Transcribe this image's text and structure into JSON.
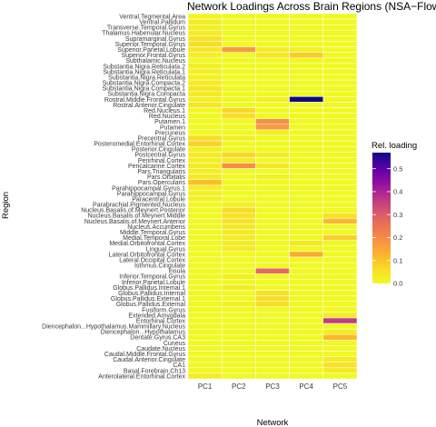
{
  "chart_data": {
    "type": "heatmap",
    "title": "Network Loadings Across Brain Regions (NSA−Flow)",
    "xlabel": "Network",
    "ylabel": "Region",
    "columns": [
      "PC1",
      "PC2",
      "PC3",
      "PC4",
      "PC5"
    ],
    "rows": [
      "Ventral.Tegmental.Area",
      "Ventral.Pallidum",
      "Transverse.Temporal.Gyrus",
      "Thalamus.Habenular.Nucleus",
      "Supramarginal.Gyrus",
      "Superior.Temporal.Gyrus",
      "Superior.Parietal.Lobule",
      "Superior.Frontal.Gyrus",
      "Subthalamic.Nucleus",
      "Substantia.Nigra.Reticulata.2",
      "Substantia.Nigra.Reticulata.1",
      "Substantia.Nigra.Reticulata",
      "Substantia.Nigra.Compacta.2",
      "Substantia.Nigra.Compacta.1",
      "Substantia.Nigra.Compacta",
      "Rostral.Middle.Frontal.Gyrus",
      "Rostral.Anterior.Cingulate",
      "Red.Nucleus.1",
      "Red.Nucleus",
      "Putamen.1",
      "Putamen",
      "Precuneus",
      "Precentral.Gyrus",
      "Posteromedial.Entorhinal.Cortex",
      "Posterior.Cingulate",
      "Postcentral.Gyrus",
      "Perirhinal.Cortex",
      "Pericalcarine.Cortex",
      "Pars.Triangularis",
      "Pars.Orbitalis",
      "Pars.Opercularis",
      "Parahippocampal.Gyrus.1",
      "Parahippocampal.Gyrus",
      "Paracentral.Lobule",
      "Parabrachial.Pigmented.Nucleus",
      "Nucleus.Basalis.of.Meynert.Posterior",
      "Nucleus.Basalis.of.Meynert.Middle",
      "Nucleus.Basalis.of.Meynert.Anterior",
      "Nucleus.Accumbens",
      "Middle.Temporal.Gyrus",
      "Medial.Temporal.Lobe",
      "Medial.Orbitofrontal.Cortex",
      "Lingual.Gyrus",
      "Lateral.Orbitofrontal.Cortex",
      "Lateral.Occipital.Cortex",
      "Isthmus.Cingulate",
      "Insula",
      "Inferior.Temporal.Gyrus",
      "Inferior.Parietal.Lobule",
      "Globus.Pallidus.Internal.1",
      "Globus.Pallidus.Internal",
      "Globus.Pallidus.External.1",
      "Globus.Pallidus.External",
      "Fusiform.Gyrus",
      "Extended.Amygdala",
      "Entorhinal.Cortex",
      "Diencephalon...Hypothalamus.Mammillary.Nucleus",
      "Diencephalon...Hypothalamus",
      "Dentate.Gyrus.CA3",
      "Cuneus",
      "Caudate.Nucleus",
      "Caudal.Middle.Frontal.Gyrus",
      "Caudal.Anterior.Cingulate",
      "CA1",
      "Basal.Forebrain.Ch13",
      "Anterolateral.Entorhinal.Cortex"
    ],
    "values": [
      [
        0.01,
        0.0,
        0.0,
        0.0,
        0.0
      ],
      [
        0.03,
        0.0,
        0.0,
        0.0,
        0.0
      ],
      [
        0.02,
        0.0,
        0.0,
        0.0,
        0.0
      ],
      [
        0.03,
        0.0,
        0.0,
        0.0,
        0.0
      ],
      [
        0.05,
        0.0,
        0.0,
        0.0,
        0.0
      ],
      [
        0.06,
        0.0,
        0.0,
        0.0,
        0.0
      ],
      [
        0.04,
        0.17,
        0.03,
        0.02,
        0.0
      ],
      [
        0.02,
        0.0,
        0.04,
        0.09,
        0.0
      ],
      [
        0.0,
        0.0,
        0.0,
        0.0,
        0.0
      ],
      [
        0.02,
        0.0,
        0.0,
        0.0,
        0.0
      ],
      [
        0.02,
        0.0,
        0.0,
        0.0,
        0.0
      ],
      [
        0.02,
        0.0,
        0.0,
        0.0,
        0.0
      ],
      [
        0.03,
        0.0,
        0.0,
        0.0,
        0.0
      ],
      [
        0.04,
        0.0,
        0.0,
        0.0,
        0.0
      ],
      [
        0.03,
        0.0,
        0.0,
        0.0,
        0.0
      ],
      [
        0.02,
        0.0,
        0.02,
        0.57,
        0.0
      ],
      [
        0.04,
        0.0,
        0.0,
        0.0,
        0.0
      ],
      [
        0.0,
        0.07,
        0.0,
        0.0,
        0.0
      ],
      [
        0.0,
        0.06,
        0.0,
        0.0,
        0.0
      ],
      [
        0.0,
        0.0,
        0.19,
        0.0,
        0.0
      ],
      [
        0.0,
        0.0,
        0.17,
        0.0,
        0.0
      ],
      [
        0.0,
        0.0,
        0.02,
        0.0,
        0.0
      ],
      [
        0.06,
        0.02,
        0.0,
        0.0,
        0.0
      ],
      [
        0.08,
        0.0,
        0.0,
        0.0,
        0.0
      ],
      [
        0.02,
        0.0,
        0.0,
        0.0,
        0.0
      ],
      [
        0.03,
        0.07,
        0.03,
        0.0,
        0.0
      ],
      [
        0.02,
        0.03,
        0.0,
        0.0,
        0.0
      ],
      [
        0.03,
        0.19,
        0.04,
        0.0,
        0.0
      ],
      [
        0.02,
        0.0,
        0.0,
        0.0,
        0.0
      ],
      [
        0.03,
        0.0,
        0.02,
        0.0,
        0.0
      ],
      [
        0.11,
        0.0,
        0.0,
        0.0,
        0.0
      ],
      [
        0.02,
        0.0,
        0.0,
        0.0,
        0.0
      ],
      [
        0.02,
        0.0,
        0.0,
        0.0,
        0.0
      ],
      [
        0.02,
        0.0,
        0.0,
        0.0,
        0.0
      ],
      [
        0.0,
        0.02,
        0.0,
        0.0,
        0.0
      ],
      [
        0.0,
        0.06,
        0.0,
        0.0,
        0.0
      ],
      [
        0.0,
        0.05,
        0.0,
        0.0,
        0.05
      ],
      [
        0.0,
        0.05,
        0.0,
        0.0,
        0.12
      ],
      [
        0.0,
        0.04,
        0.0,
        0.0,
        0.0
      ],
      [
        0.0,
        0.03,
        0.0,
        0.0,
        0.0
      ],
      [
        0.0,
        0.03,
        0.0,
        0.0,
        0.08
      ],
      [
        0.0,
        0.03,
        0.0,
        0.04,
        0.0
      ],
      [
        0.0,
        0.03,
        0.0,
        0.0,
        0.0
      ],
      [
        0.0,
        0.0,
        0.0,
        0.14,
        0.0
      ],
      [
        0.0,
        0.0,
        0.0,
        0.0,
        0.0
      ],
      [
        0.0,
        0.0,
        0.0,
        0.0,
        0.0
      ],
      [
        0.0,
        0.0,
        0.27,
        0.0,
        0.0
      ],
      [
        0.0,
        0.02,
        0.0,
        0.0,
        0.0
      ],
      [
        0.0,
        0.0,
        0.0,
        0.0,
        0.0
      ],
      [
        0.0,
        0.03,
        0.0,
        0.0,
        0.0
      ],
      [
        0.0,
        0.0,
        0.05,
        0.0,
        0.0
      ],
      [
        0.0,
        0.0,
        0.06,
        0.0,
        0.0
      ],
      [
        0.0,
        0.02,
        0.06,
        0.0,
        0.0
      ],
      [
        0.0,
        0.0,
        0.0,
        0.0,
        0.0
      ],
      [
        0.0,
        0.0,
        0.0,
        0.0,
        0.03
      ],
      [
        0.0,
        0.0,
        0.0,
        0.0,
        0.36
      ],
      [
        0.0,
        0.0,
        0.0,
        0.0,
        0.0
      ],
      [
        0.0,
        0.0,
        0.0,
        0.0,
        0.03
      ],
      [
        0.0,
        0.0,
        0.0,
        0.0,
        0.12
      ],
      [
        0.0,
        0.0,
        0.0,
        0.0,
        0.0
      ],
      [
        0.0,
        0.0,
        0.0,
        0.0,
        0.0
      ],
      [
        0.0,
        0.0,
        0.0,
        0.0,
        0.0
      ],
      [
        0.0,
        0.0,
        0.0,
        0.0,
        0.03
      ],
      [
        0.0,
        0.0,
        0.0,
        0.0,
        0.05
      ],
      [
        0.0,
        0.0,
        0.0,
        0.0,
        0.03
      ],
      [
        0.03,
        0.0,
        0.0,
        0.0,
        0.0
      ]
    ],
    "colorbar": {
      "title": "Rel. loading",
      "range": [
        0,
        0.57
      ],
      "ticks": [
        0.0,
        0.1,
        0.2,
        0.3,
        0.4,
        0.5
      ],
      "tick_labels": [
        "0.0",
        "0.1",
        "0.2",
        "0.3",
        "0.4",
        "0.5"
      ],
      "colormap": "plasma-reversed"
    },
    "legend_position": "right",
    "grid": false,
    "colors": {
      "low": "#f7ef3a",
      "high": "#0d0887"
    }
  }
}
